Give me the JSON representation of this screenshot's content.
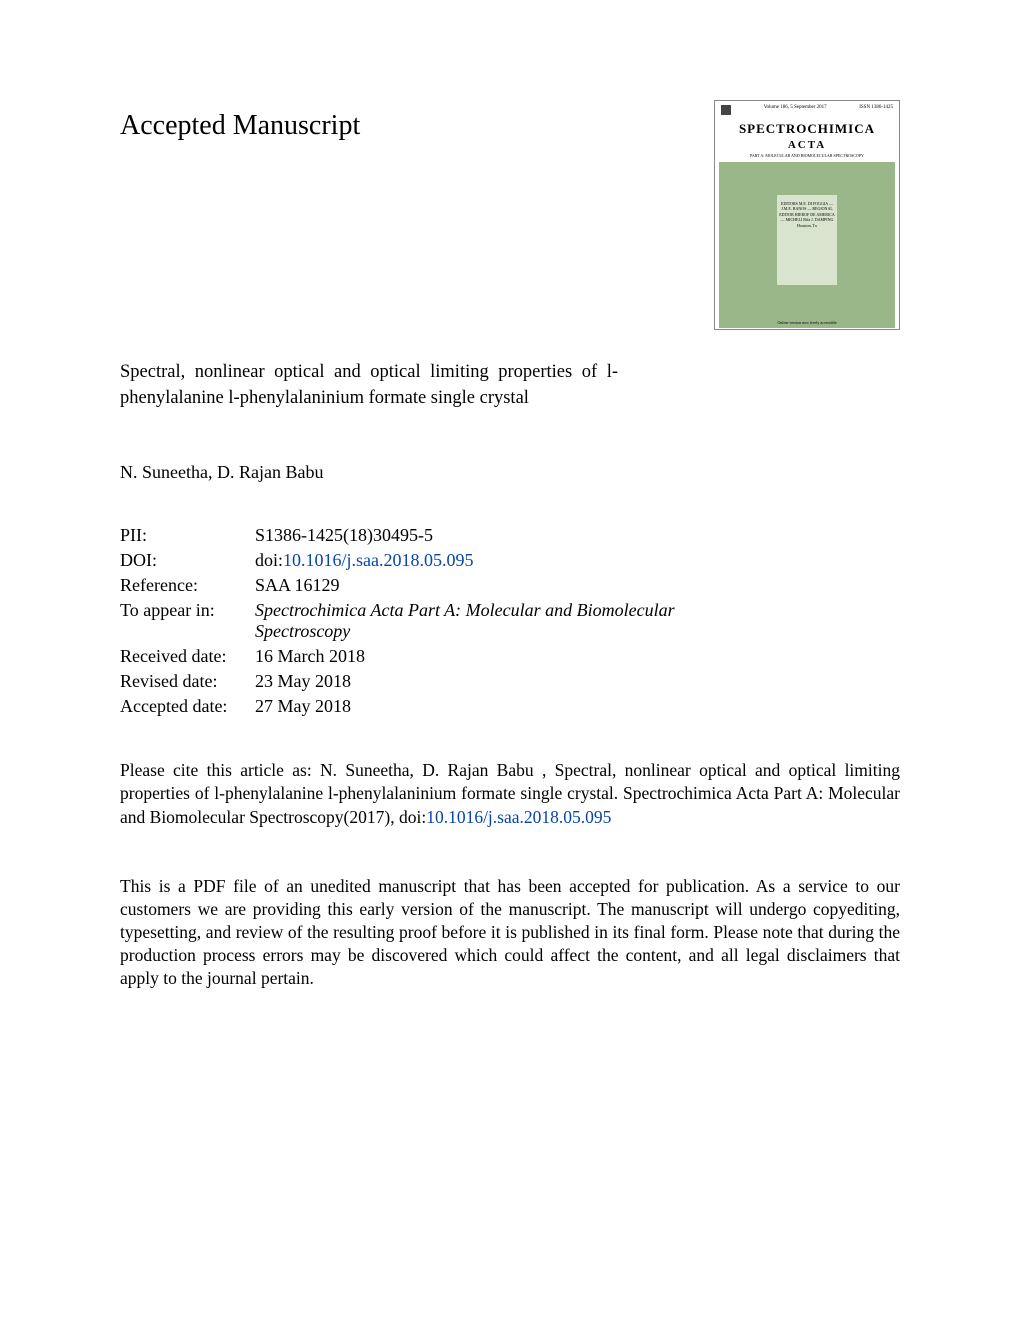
{
  "heading": "Accepted Manuscript",
  "article_title": "Spectral, nonlinear optical and optical limiting properties of l-phenylalanine l-phenylalaninium formate single crystal",
  "authors": "N. Suneetha, D. Rajan Babu",
  "metadata": {
    "pii_label": "PII:",
    "pii_value": "S1386-1425(18)30495-5",
    "doi_label": "DOI:",
    "doi_prefix": "doi:",
    "doi_link": "10.1016/j.saa.2018.05.095",
    "reference_label": "Reference:",
    "reference_value": "SAA 16129",
    "appear_label": "To appear in:",
    "appear_value": "Spectrochimica Acta Part A: Molecular and Biomolecular Spectroscopy",
    "received_label": "Received date:",
    "received_value": "16 March 2018",
    "revised_label": "Revised date:",
    "revised_value": "23 May 2018",
    "accepted_label": "Accepted date:",
    "accepted_value": "27 May 2018"
  },
  "citation": {
    "prefix": "Please cite this article as: N. Suneetha, D. Rajan Babu , Spectral, nonlinear optical and optical limiting properties of l-phenylalanine l-phenylalaninium formate single crystal. Spectrochimica Acta Part A: Molecular and Biomolecular Spectroscopy(2017), doi:",
    "doi_link": "10.1016/j.saa.2018.05.095"
  },
  "disclaimer": "This is a PDF file of an unedited manuscript that has been accepted for publication. As a service to our customers we are providing this early version of the manuscript. The manuscript will undergo copyediting, typesetting, and review of the resulting proof before it is published in its final form. Please note that during the production process errors may be discovered which could affect the content, and all legal disclaimers that apply to the journal pertain.",
  "cover": {
    "header_left": "Volume 186, 5 September 2017",
    "header_right": "ISSN 1386-1425",
    "title": "SPECTROCHIMICA",
    "subtitle": "ACTA",
    "subsubtitle": "PART A: MOLECULAR AND BIOMOLECULAR SPECTROSCOPY",
    "editors": "EDITORS\nM.E. DI FOGGIA\n—\nJ.M.E. BANOS\n—\nREGIONAL EDITOR\nHIEROF DE AMERICA\n—\nMICHELI\nBifa J. DAMPING\nHouston, Tx",
    "footer": "Online version now freely accessible",
    "bg_color": "#9ab78a",
    "box_color": "#d8e4ce",
    "link_color": "#0645ad"
  }
}
